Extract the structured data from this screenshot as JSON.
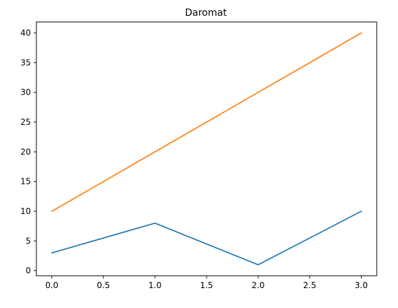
{
  "chart_data": {
    "type": "line",
    "title": "Daromat",
    "xlabel": "",
    "ylabel": "",
    "xlim": [
      -0.15,
      3.15
    ],
    "ylim": [
      -0.85,
      41.85
    ],
    "xticks": [
      0.0,
      0.5,
      1.0,
      1.5,
      2.0,
      2.5,
      3.0
    ],
    "xtick_labels": [
      "0.0",
      "0.5",
      "1.0",
      "1.5",
      "2.0",
      "2.5",
      "3.0"
    ],
    "yticks": [
      0,
      5,
      10,
      15,
      20,
      25,
      30,
      35,
      40
    ],
    "ytick_labels": [
      "0",
      "5",
      "10",
      "15",
      "20",
      "25",
      "30",
      "35",
      "40"
    ],
    "grid": false,
    "legend": "none",
    "series": [
      {
        "x": [
          0,
          1,
          2,
          3
        ],
        "values": [
          3,
          8,
          1,
          10
        ],
        "color": "#1f77b4"
      },
      {
        "x": [
          0,
          1,
          2,
          3
        ],
        "values": [
          10,
          20,
          30,
          40
        ],
        "color": "#ff7f0e"
      }
    ]
  }
}
